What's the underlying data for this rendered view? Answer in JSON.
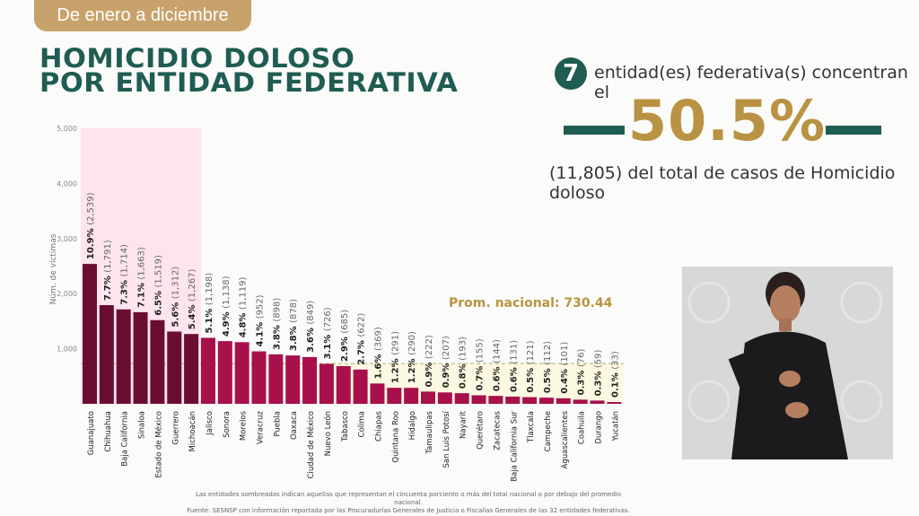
{
  "header": {
    "period": "De enero a diciembre",
    "title_line1": "HOMICIDIO DOLOSO",
    "title_line2": "POR ENTIDAD FEDERATIVA"
  },
  "summary": {
    "count": "7",
    "line1": "entidad(es) federativa(s) concentran el",
    "percent": "50.5%",
    "line3": "(11,805) del total de casos de Homicidio doloso"
  },
  "notes": {
    "shading": "Las entidades sombreadas indican aquellas que representan el cincuenta porciento o más del total nacional o por debajo del promedio nacional.",
    "source": "Fuente: SESNSP con información reportada por las Procuradurías Generales de Justicia o Fiscalías Generales de las 32 entidades federativas."
  },
  "colors": {
    "top_bars": "#6b0d33",
    "other_bars": "#a8104b",
    "highlight": "#fde4ef",
    "below_avg": "#fdf8e1",
    "accent_green": "#1f5c52",
    "accent_gold": "#b99343"
  },
  "chart_data": {
    "type": "bar",
    "ylabel": "Núm. de víctimas",
    "ylim": [
      0,
      5000
    ],
    "yticks": [
      "1,000",
      "2,000",
      "3,000",
      "4,000",
      "5,000"
    ],
    "ytick_values": [
      1000,
      2000,
      3000,
      4000,
      5000
    ],
    "average": {
      "label": "Prom. nacional: 730.44",
      "value": 730.44
    },
    "highlighted_count": 7,
    "categories": [
      "Guanajuato",
      "Chihuahua",
      "Baja California",
      "Sinaloa",
      "Estado de México",
      "Guerrero",
      "Michoacán",
      "Jalisco",
      "Sonora",
      "Morelos",
      "Veracruz",
      "Puebla",
      "Oaxaca",
      "Ciudad de México",
      "Nuevo León",
      "Tabasco",
      "Colima",
      "Chiapas",
      "Quintana Roo",
      "Hidalgo",
      "Tamaulipas",
      "San Luis Potosí",
      "Nayarit",
      "Querétaro",
      "Zacatecas",
      "Baja California Sur",
      "Tlaxcala",
      "Campeche",
      "Aguascalientes",
      "Coahuila",
      "Durango",
      "Yucatán"
    ],
    "values": [
      2539,
      1791,
      1714,
      1663,
      1519,
      1312,
      1267,
      1198,
      1138,
      1119,
      952,
      898,
      878,
      849,
      726,
      685,
      622,
      369,
      291,
      290,
      222,
      207,
      193,
      155,
      144,
      131,
      121,
      112,
      101,
      76,
      59,
      33
    ],
    "value_labels": [
      "(2,539)",
      "(1,791)",
      "(1,714)",
      "(1,663)",
      "(1,519)",
      "(1,312)",
      "(1,267)",
      "(1,198)",
      "(1,138)",
      "(1,119)",
      "(952)",
      "(898)",
      "(878)",
      "(849)",
      "(726)",
      "(685)",
      "(622)",
      "(369)",
      "(291)",
      "(290)",
      "(222)",
      "(207)",
      "(193)",
      "(155)",
      "(144)",
      "(131)",
      "(121)",
      "(112)",
      "(101)",
      "(76)",
      "(59)",
      "(33)"
    ],
    "percents": [
      "10.9%",
      "7.7%",
      "7.3%",
      "7.1%",
      "6.5%",
      "5.6%",
      "5.4%",
      "5.1%",
      "4.9%",
      "4.8%",
      "4.1%",
      "3.8%",
      "3.8%",
      "3.6%",
      "3.1%",
      "2.9%",
      "2.7%",
      "1.6%",
      "1.2%",
      "1.2%",
      "0.9%",
      "0.9%",
      "0.8%",
      "0.7%",
      "0.6%",
      "0.6%",
      "0.5%",
      "0.5%",
      "0.4%",
      "0.3%",
      "0.3%",
      "0.1%"
    ]
  }
}
